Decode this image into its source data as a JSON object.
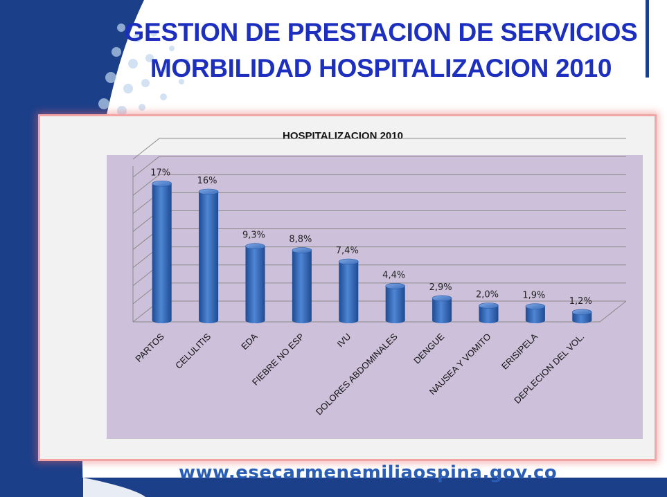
{
  "slide": {
    "title_line1": "GESTION DE PRESTACION DE SERVICIOS",
    "title_line2": "MORBILIDAD HOSPITALIZACION 2010",
    "footer_url": "www.esecarmenemiliaospina.gov.co",
    "colors": {
      "title": "#1c2fbf",
      "bar": "#3a6fbd",
      "plot_bg": "#ccc0da",
      "frame": "#1c3f8a"
    }
  },
  "chart_data": {
    "type": "bar",
    "title": "HOSPITALIZACION 2010",
    "categories": [
      "PARTOS",
      "CELULITIS",
      "EDA",
      "FIEBRE NO ESP",
      "IVU",
      "DOLORES ABDOMINALES",
      "DENGUE",
      "NAUSEA Y VOMITO",
      "ERISIPELA",
      "DEPLECION DEL VOL."
    ],
    "values": [
      17,
      16,
      9.3,
      8.8,
      7.4,
      4.4,
      2.9,
      2.0,
      1.9,
      1.2
    ],
    "data_labels": [
      "17%",
      "16%",
      "9,3%",
      "8,8%",
      "7,4%",
      "4,4%",
      "2,9%",
      "2,0%",
      "1,9%",
      "1,2%"
    ],
    "ylim": [
      0,
      20
    ],
    "grid": true,
    "style": "3d-cylinder"
  }
}
